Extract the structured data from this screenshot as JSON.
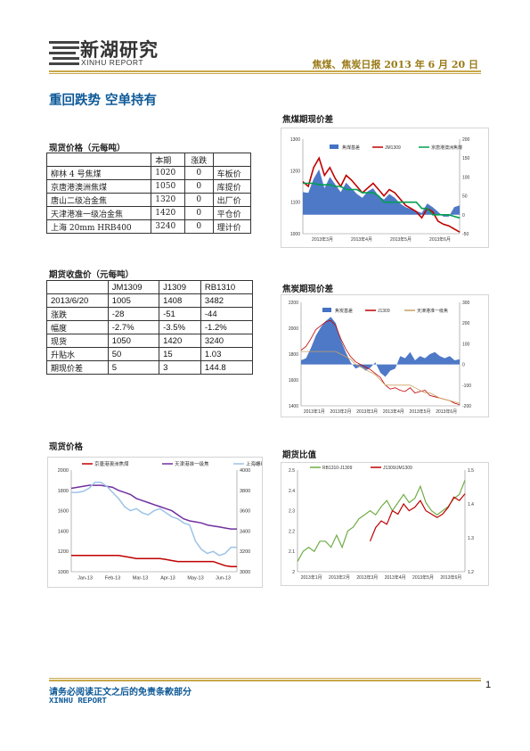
{
  "header": {
    "logo_cn": "新湖研究",
    "logo_en": "XINHU REPORT",
    "report_title": "焦煤、焦炭日报 2013 年 6 月 20 日"
  },
  "main_title": "重回跌势 空单持有",
  "spot": {
    "title": "现货价格（元每吨）",
    "headers": [
      "",
      "本期",
      "涨跌",
      ""
    ],
    "rows": [
      [
        "柳林 4 号焦煤",
        "1020",
        "0",
        "车板价"
      ],
      [
        "京唐港澳洲焦煤",
        "1050",
        "0",
        "库提价"
      ],
      [
        "唐山二级冶金焦",
        "1320",
        "0",
        "出厂价"
      ],
      [
        "天津港准一级冶金焦",
        "1420",
        "0",
        "平仓价"
      ],
      [
        "上海 20mm HRB400",
        "3240",
        "0",
        "理计价"
      ]
    ]
  },
  "futures": {
    "title": "期货收盘价（元每吨）",
    "headers": [
      "",
      "JM1309",
      "J1309",
      "RB1310"
    ],
    "rows": [
      [
        "2013/6/20",
        "1005",
        "1408",
        "3482"
      ],
      [
        "涨跌",
        "-28",
        "-51",
        "-44"
      ],
      [
        "幅度",
        "-2.7%",
        "-3.5%",
        "-1.2%"
      ],
      [
        "现货",
        "1050",
        "1420",
        "3240"
      ],
      [
        "升贴水",
        "50",
        "15",
        "1.03"
      ],
      [
        "期现价差",
        "5",
        "3",
        "144.8"
      ]
    ]
  },
  "sections": {
    "jm_basis": "焦煤期现价差",
    "j_basis": "焦炭期现价差",
    "spot_price": "现货价格",
    "ratio": "期货比值"
  },
  "footer": {
    "disclaimer": "请务必阅读正文之后的免责条款部分",
    "brand": "XINHU REPORT",
    "page": "1"
  },
  "chart_data": [
    {
      "id": "jm",
      "type": "line",
      "legend": [
        "焦煤基差",
        "JM1309",
        "京唐港澳洲焦煤"
      ],
      "x_ticks": [
        "2013年3月",
        "2013年4月",
        "2013年5月",
        "2013年6月"
      ],
      "y_left": [
        1000,
        1100,
        1200,
        1300
      ],
      "y_right": [
        -50,
        0,
        50,
        100,
        150,
        200
      ],
      "colors": {
        "basis": "#4472c4",
        "futures": "#c00000",
        "spot": "#00a050"
      },
      "series": {
        "basis": [
          60,
          58,
          95,
          120,
          70,
          100,
          80,
          60,
          85,
          70,
          55,
          45,
          62,
          70,
          50,
          40,
          55,
          45,
          30,
          20,
          15,
          10,
          5,
          30,
          20,
          8,
          -5,
          -5,
          20,
          25
        ],
        "futures": [
          1165,
          1150,
          1210,
          1240,
          1185,
          1210,
          1175,
          1150,
          1185,
          1170,
          1150,
          1130,
          1145,
          1160,
          1140,
          1120,
          1140,
          1130,
          1110,
          1090,
          1080,
          1070,
          1050,
          1080,
          1070,
          1040,
          1030,
          1025,
          1015,
          1005
        ],
        "spot": [
          1160,
          1160,
          1160,
          1155,
          1155,
          1155,
          1150,
          1150,
          1140,
          1140,
          1140,
          1130,
          1130,
          1130,
          1120,
          1100,
          1100,
          1100,
          1100,
          1100,
          1100,
          1100,
          1080,
          1080,
          1060,
          1060,
          1060,
          1060,
          1055,
          1050
        ]
      }
    },
    {
      "id": "j",
      "type": "line",
      "legend": [
        "焦炭基差",
        "J1309",
        "天津港准一级焦"
      ],
      "x_ticks": [
        "2013年1月",
        "2013年2月",
        "2013年3月",
        "2013年4月",
        "2013年5月",
        "2013年6月"
      ],
      "y_left": [
        1400,
        1600,
        1800,
        2000,
        2200
      ],
      "y_right": [
        -200,
        -100,
        0,
        100,
        200,
        300
      ],
      "colors": {
        "basis": "#4472c4",
        "futures": "#c00000",
        "spot": "#c8a060"
      },
      "series": {
        "basis": [
          20,
          30,
          80,
          140,
          180,
          210,
          230,
          200,
          120,
          60,
          10,
          -20,
          -10,
          -30,
          -15,
          10,
          -40,
          -60,
          -30,
          -20,
          40,
          30,
          60,
          20,
          40,
          30,
          50,
          60,
          40,
          30,
          40,
          20,
          25
        ],
        "futures": [
          1830,
          1860,
          1920,
          1990,
          2020,
          2050,
          2060,
          2020,
          1920,
          1840,
          1780,
          1740,
          1720,
          1700,
          1680,
          1650,
          1620,
          1560,
          1530,
          1540,
          1520,
          1510,
          1540,
          1500,
          1510,
          1520,
          1480,
          1470,
          1460,
          1450,
          1440,
          1420,
          1408
        ],
        "spot": [
          1820,
          1820,
          1820,
          1820,
          1820,
          1820,
          1820,
          1820,
          1800,
          1780,
          1760,
          1720,
          1700,
          1680,
          1660,
          1640,
          1600,
          1560,
          1560,
          1560,
          1560,
          1560,
          1560,
          1540,
          1520,
          1500,
          1500,
          1480,
          1460,
          1450,
          1440,
          1430,
          1420
        ]
      }
    },
    {
      "id": "spot",
      "type": "line",
      "legend": [
        "京唐港澳洲焦煤",
        "天津港准一级焦",
        "上海螺纹钢"
      ],
      "x_ticks": [
        "Jan-13",
        "Feb-13",
        "Mar-13",
        "Apr-13",
        "May-13",
        "Jun-13"
      ],
      "y_left": [
        1000,
        1200,
        1400,
        1600,
        1800,
        2000
      ],
      "y_right": [
        3000,
        3200,
        3400,
        3600,
        3800,
        4000
      ],
      "colors": {
        "jm_spot": "#c00000",
        "j_spot": "#7030a0",
        "rebar": "#9dc3e6"
      },
      "series": {
        "jm_spot": [
          1160,
          1160,
          1160,
          1160,
          1160,
          1160,
          1160,
          1160,
          1160,
          1150,
          1140,
          1130,
          1130,
          1130,
          1130,
          1130,
          1120,
          1110,
          1100,
          1100,
          1100,
          1100,
          1100,
          1100,
          1100,
          1080,
          1060,
          1050,
          1050
        ],
        "j_spot": [
          1820,
          1830,
          1840,
          1850,
          1850,
          1850,
          1840,
          1830,
          1800,
          1780,
          1760,
          1720,
          1700,
          1680,
          1660,
          1640,
          1620,
          1600,
          1560,
          1520,
          1500,
          1490,
          1480,
          1460,
          1450,
          1440,
          1430,
          1420,
          1420
        ],
        "rebar": [
          3780,
          3780,
          3790,
          3820,
          3880,
          3880,
          3840,
          3780,
          3720,
          3640,
          3600,
          3620,
          3580,
          3560,
          3600,
          3620,
          3580,
          3540,
          3520,
          3480,
          3460,
          3300,
          3220,
          3180,
          3200,
          3160,
          3180,
          3240,
          3240
        ]
      }
    },
    {
      "id": "ratio",
      "type": "line",
      "legend": [
        "RB1310-J1309",
        "J1309/JM1309"
      ],
      "x_ticks": [
        "2013年1月",
        "2013年2月",
        "2013年3月",
        "2013年4月",
        "2013年5月",
        "2013年6月"
      ],
      "y_left": [
        2,
        2.1,
        2.2,
        2.3,
        2.4,
        2.5
      ],
      "y_right": [
        1.2,
        1.3,
        1.4,
        1.5
      ],
      "colors": {
        "rb_j": "#70ad47",
        "j_jm": "#c00000"
      },
      "series": {
        "rb_j": [
          2.05,
          2.1,
          2.12,
          2.1,
          2.15,
          2.15,
          2.12,
          2.18,
          2.12,
          2.2,
          2.22,
          2.26,
          2.28,
          2.3,
          2.28,
          2.32,
          2.35,
          2.3,
          2.34,
          2.38,
          2.34,
          2.36,
          2.42,
          2.34,
          2.3,
          2.28,
          2.3,
          2.32,
          2.36,
          2.38,
          2.45
        ],
        "j_jm": [
          null,
          null,
          null,
          null,
          null,
          null,
          null,
          null,
          null,
          null,
          null,
          null,
          null,
          1.29,
          1.33,
          1.35,
          1.34,
          1.38,
          1.37,
          1.4,
          1.38,
          1.39,
          1.41,
          1.38,
          1.37,
          1.36,
          1.37,
          1.39,
          1.42,
          1.41,
          1.43
        ]
      }
    }
  ]
}
